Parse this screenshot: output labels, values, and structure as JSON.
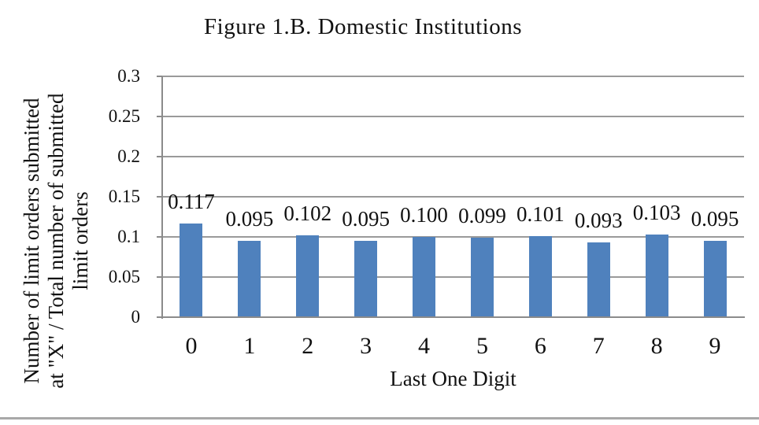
{
  "chart_data": {
    "type": "bar",
    "title": "Figure 1.B. Domestic Institutions",
    "xlabel": "Last One Digit",
    "ylabel_lines": [
      "Number of limit orders submitted",
      "at \"X\" / Total number of submitted",
      "limit orders"
    ],
    "categories": [
      "0",
      "1",
      "2",
      "3",
      "4",
      "5",
      "6",
      "7",
      "8",
      "9"
    ],
    "values": [
      0.117,
      0.095,
      0.102,
      0.095,
      0.1,
      0.099,
      0.101,
      0.093,
      0.103,
      0.095
    ],
    "value_labels": [
      "0.117",
      "0.095",
      "0.102",
      "0.095",
      "0.100",
      "0.099",
      "0.101",
      "0.093",
      "0.103",
      "0.095"
    ],
    "ylim": [
      0,
      0.3
    ],
    "ytick_step": 0.05,
    "ytick_labels": [
      "0",
      "0.05",
      "0.1",
      "0.15",
      "0.2",
      "0.25",
      "0.3"
    ],
    "grid": true,
    "legend": null,
    "bar_color": "#4f81bd",
    "gridline_color": "#9a9a9a",
    "axis_color": "#8b8b8b",
    "text_color": "#111111"
  }
}
